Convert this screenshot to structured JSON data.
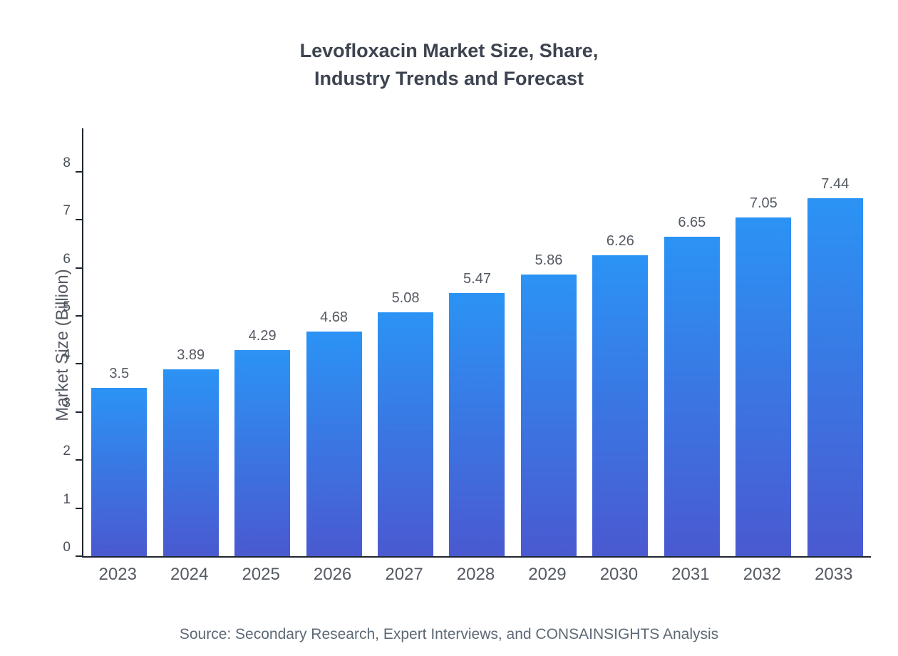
{
  "title": {
    "line1": "Levofloxacin Market Size, Share,",
    "line2": "Industry Trends and Forecast"
  },
  "source": "Source: Secondary Research, Expert Interviews, and CONSAINSIGHTS Analysis",
  "chart_data": {
    "type": "bar",
    "title": "Levofloxacin Market Size, Share, Industry Trends and Forecast",
    "categories": [
      "2023",
      "2024",
      "2025",
      "2026",
      "2027",
      "2028",
      "2029",
      "2030",
      "2031",
      "2032",
      "2033"
    ],
    "values": [
      3.5,
      3.89,
      4.29,
      4.68,
      5.08,
      5.47,
      5.86,
      6.26,
      6.65,
      7.05,
      7.44
    ],
    "value_labels": [
      "3.5",
      "3.89",
      "4.29",
      "4.68",
      "5.08",
      "5.47",
      "5.86",
      "6.26",
      "6.65",
      "7.05",
      "7.44"
    ],
    "xlabel": "",
    "ylabel": "Market Size (Billion)",
    "ylim": [
      0,
      8.9
    ],
    "yticks": [
      0,
      1,
      2,
      3,
      4,
      5,
      6,
      7,
      8
    ],
    "grid": false,
    "legend": false,
    "colors": {
      "bar_gradient_top": "#2b93f5",
      "bar_gradient_bottom": "#4a59d0",
      "axis": "#1f2430",
      "label_text": "#555a63"
    }
  }
}
